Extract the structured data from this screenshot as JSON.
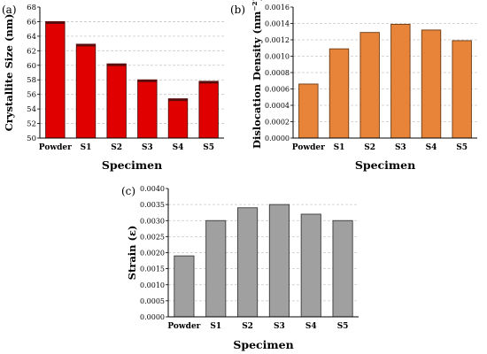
{
  "figure": {
    "panels": [
      {
        "id": "a",
        "label": "(a)"
      },
      {
        "id": "b",
        "label": "(b)"
      },
      {
        "id": "c",
        "label": "(c)"
      }
    ]
  },
  "chart_data": [
    {
      "type": "bar",
      "panel_label": "(a)",
      "categories": [
        "Powder",
        "S1",
        "S2",
        "S3",
        "S4",
        "S5"
      ],
      "values": [
        66.0,
        62.9,
        60.2,
        58.0,
        55.4,
        57.8
      ],
      "xlabel": "Specimen",
      "ylabel": "Crystallite Size (nm)",
      "ylim": [
        50,
        68
      ],
      "yticks": [
        "50",
        "52",
        "54",
        "56",
        "58",
        "60",
        "62",
        "64",
        "66",
        "68"
      ],
      "bar_color": "#e00000",
      "bar_edge": "#5a0d0d",
      "grid": true
    },
    {
      "type": "bar",
      "panel_label": "(b)",
      "categories": [
        "Powder",
        "S1",
        "S2",
        "S3",
        "S4",
        "S5"
      ],
      "values": [
        0.00066,
        0.00109,
        0.00129,
        0.00139,
        0.00132,
        0.00119
      ],
      "xlabel": "Specimen",
      "ylabel": "Dislocation Density (nm⁻²)",
      "ylim": [
        0,
        0.0016
      ],
      "yticks": [
        "0.0000",
        "0.0002",
        "0.0004",
        "0.0006",
        "0.0008",
        "0.0010",
        "0.0012",
        "0.0014",
        "0.0016"
      ],
      "bar_color": "#e8843a",
      "bar_edge": "#6b3a12",
      "grid": true
    },
    {
      "type": "bar",
      "panel_label": "(c)",
      "categories": [
        "Powder",
        "S1",
        "S2",
        "S3",
        "S4",
        "S5"
      ],
      "values": [
        0.0019,
        0.003,
        0.0034,
        0.0035,
        0.0032,
        0.003
      ],
      "xlabel": "Specimen",
      "ylabel": "Strain (ε)",
      "ylim": [
        0,
        0.004
      ],
      "yticks": [
        "0.0000",
        "0.0005",
        "0.0010",
        "0.0015",
        "0.0020",
        "0.0025",
        "0.0030",
        "0.0035",
        "0.0040"
      ],
      "bar_color": "#a0a0a0",
      "bar_edge": "#3a3a3a",
      "grid": true
    }
  ]
}
